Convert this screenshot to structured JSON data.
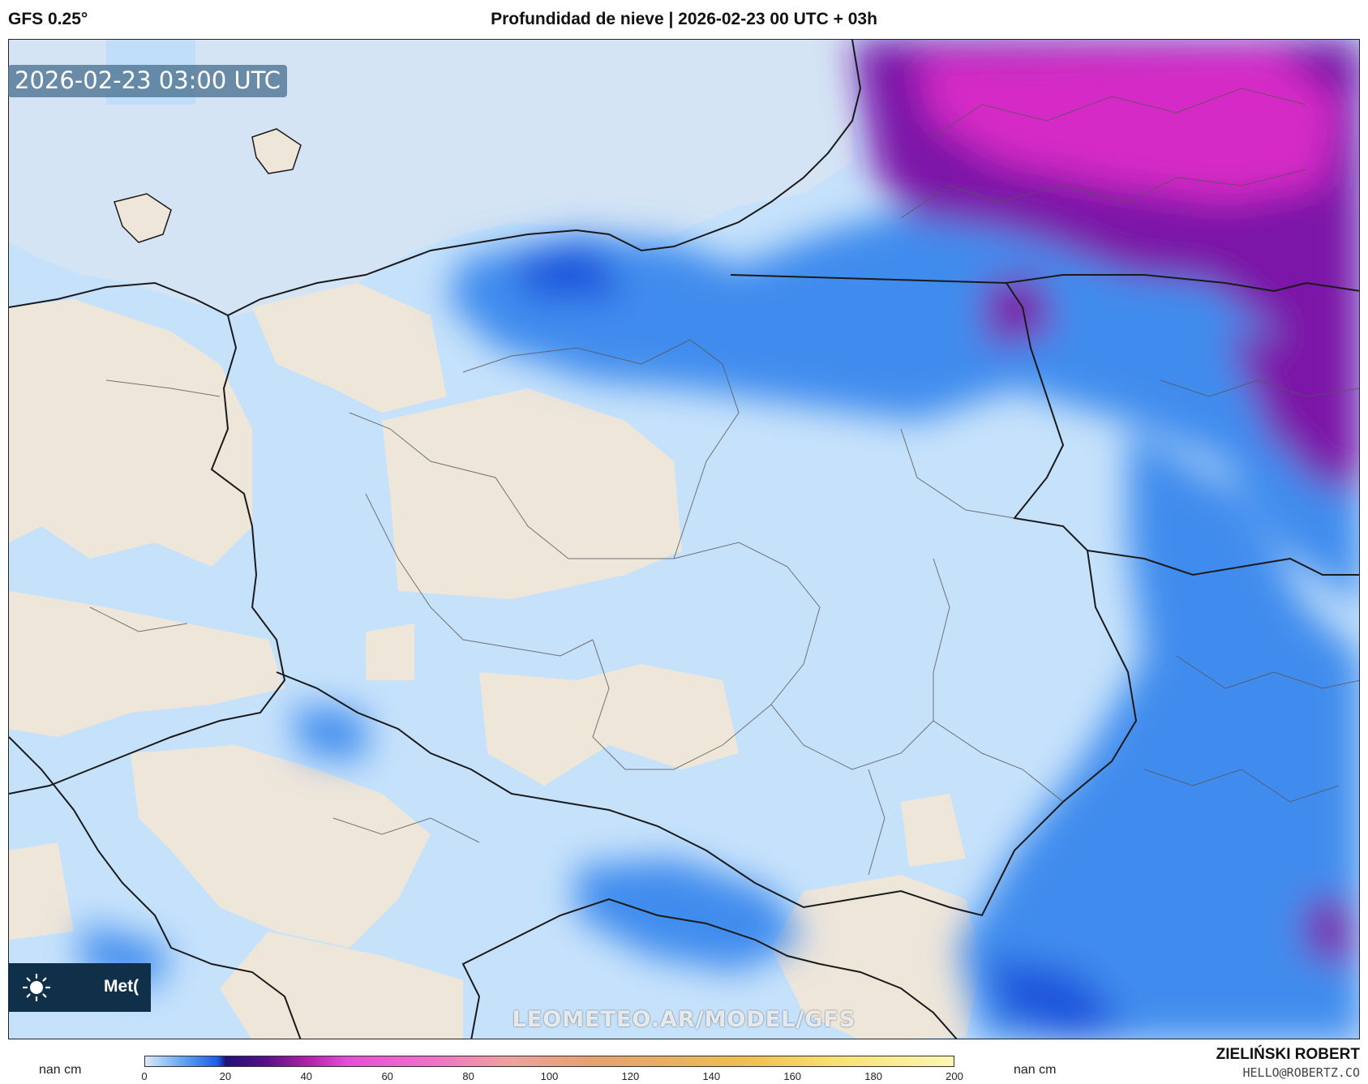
{
  "header": {
    "model": "GFS 0.25°",
    "title": "Profundidad de nieve | 2026-02-23 00 UTC + 03h"
  },
  "map": {
    "timestamp": "2026-02-23 03:00 UTC",
    "watermark": "LEOMETEO.AR/MODEL/GFS"
  },
  "badge": {
    "text": "Met(",
    "icon": "sun-icon"
  },
  "colorbar": {
    "left_unit": "nan cm",
    "right_unit": "nan cm",
    "ticks": [
      "0",
      "20",
      "40",
      "60",
      "80",
      "100",
      "120",
      "140",
      "160",
      "180",
      "200"
    ]
  },
  "credits": {
    "author": "ZIELIŃSKI ROBERT",
    "email": "HELLO@ROBERTZ.CO"
  },
  "colors": {
    "sea": "#d4e4f5",
    "land": "#efe6da",
    "light_snow": "#c6e2fb",
    "blue": "#3f8cee",
    "deep_blue": "#1f55dc",
    "purple": "#7c12a8",
    "magenta": "#d62ac6"
  }
}
